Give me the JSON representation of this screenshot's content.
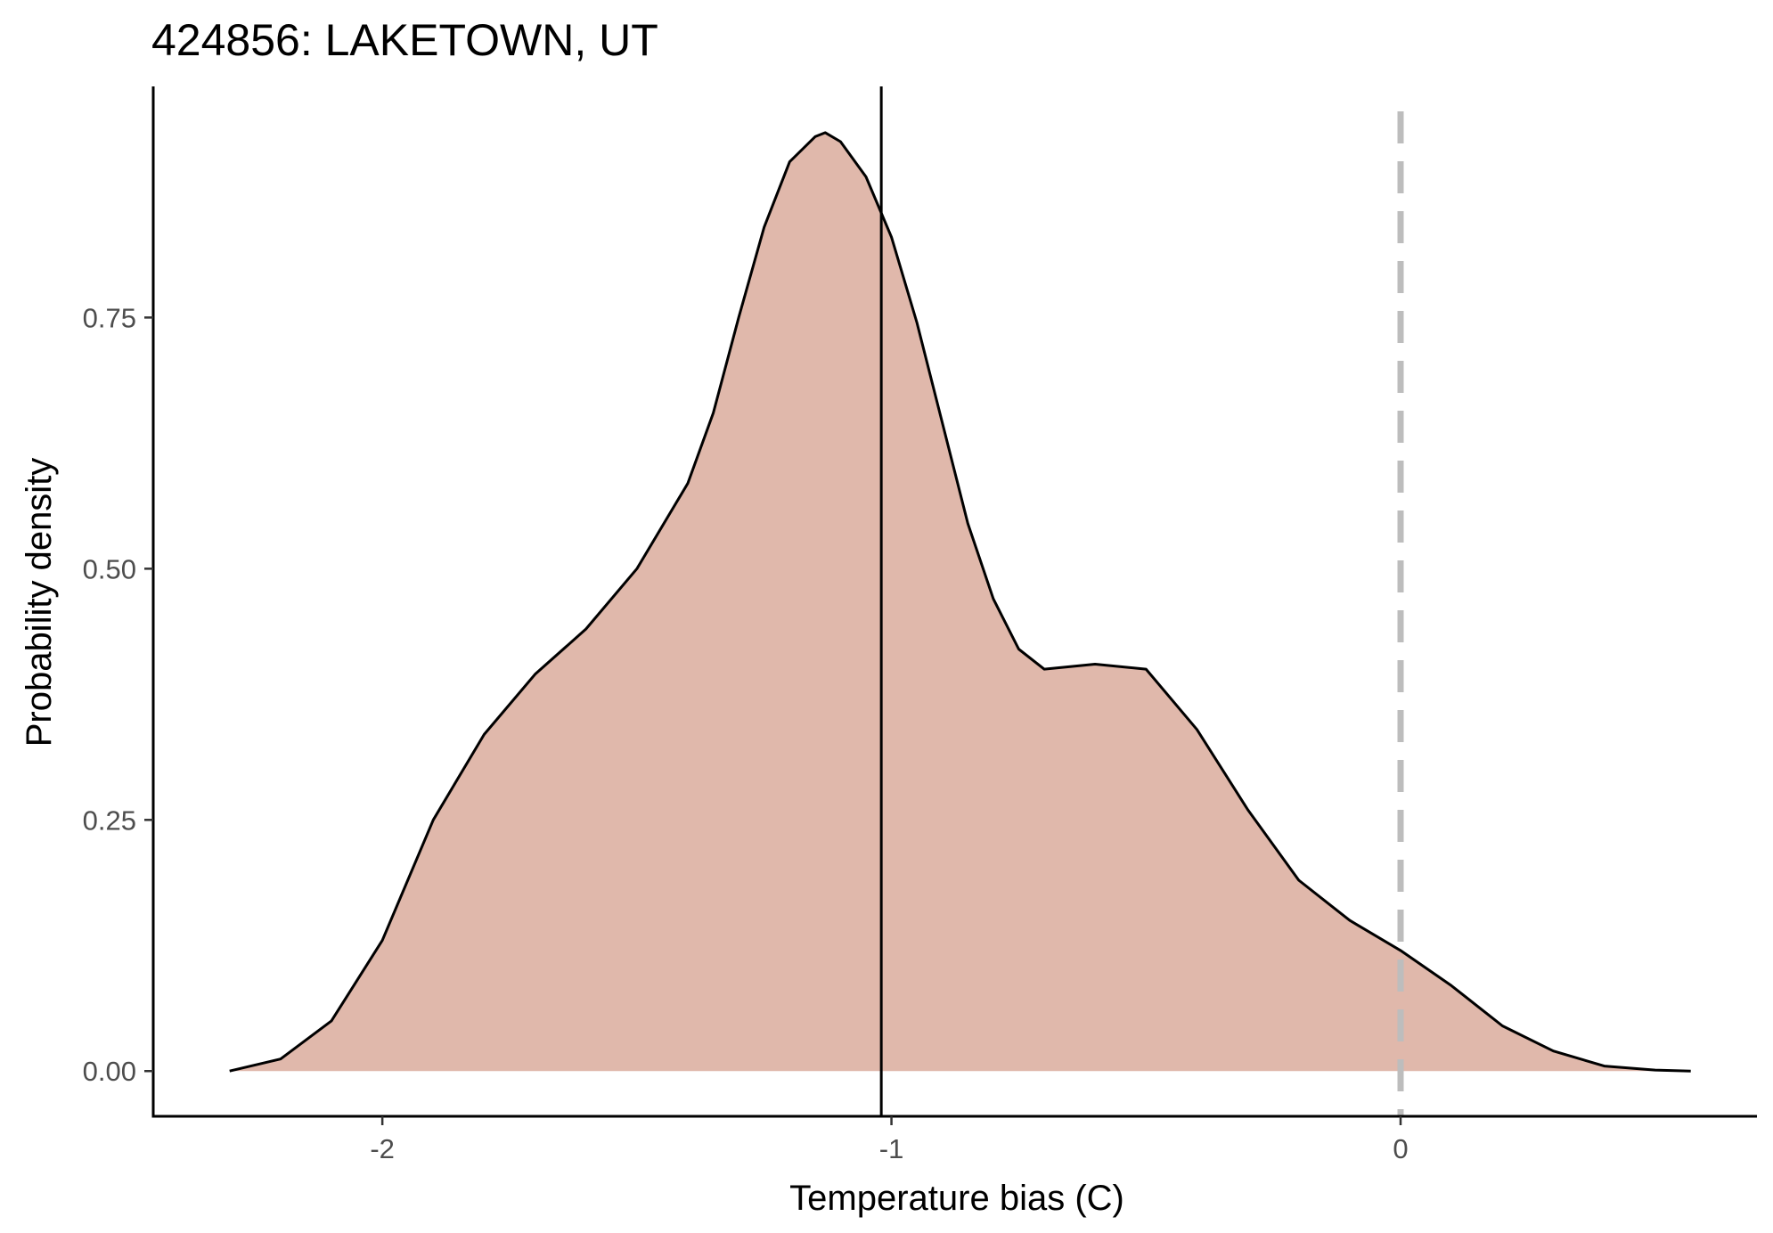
{
  "chart_data": {
    "type": "area",
    "title": "424856: LAKETOWN, UT",
    "xlabel": "Temperature bias (C)",
    "ylabel": "Probability density",
    "xlim": [
      -2.45,
      0.7
    ],
    "ylim": [
      -0.045,
      0.98
    ],
    "x_ticks": [
      {
        "value": -2,
        "label": "-2"
      },
      {
        "value": -1,
        "label": "-1"
      },
      {
        "value": 0,
        "label": "0"
      }
    ],
    "y_ticks": [
      {
        "value": 0.0,
        "label": "0.00"
      },
      {
        "value": 0.25,
        "label": "0.25"
      },
      {
        "value": 0.5,
        "label": "0.50"
      },
      {
        "value": 0.75,
        "label": "0.75"
      }
    ],
    "series": [
      {
        "x": [
          -2.3,
          -2.2,
          -2.1,
          -2.0,
          -1.9,
          -1.8,
          -1.7,
          -1.6,
          -1.5,
          -1.4,
          -1.35,
          -1.3,
          -1.25,
          -1.2,
          -1.15,
          -1.13,
          -1.1,
          -1.05,
          -1.0,
          -0.95,
          -0.9,
          -0.85,
          -0.8,
          -0.75,
          -0.7,
          -0.6,
          -0.5,
          -0.4,
          -0.3,
          -0.2,
          -0.1,
          0.0,
          0.1,
          0.2,
          0.3,
          0.4,
          0.5,
          0.57
        ],
        "y": [
          0.0,
          0.012,
          0.05,
          0.13,
          0.25,
          0.335,
          0.395,
          0.44,
          0.5,
          0.585,
          0.655,
          0.75,
          0.84,
          0.905,
          0.93,
          0.934,
          0.925,
          0.89,
          0.83,
          0.745,
          0.645,
          0.545,
          0.47,
          0.42,
          0.4,
          0.405,
          0.4,
          0.34,
          0.26,
          0.19,
          0.15,
          0.12,
          0.085,
          0.045,
          0.02,
          0.005,
          0.001,
          0.0
        ]
      }
    ],
    "vlines": [
      {
        "x": -1.02,
        "style": "solid",
        "color": "#000000"
      },
      {
        "x": 0.0,
        "style": "dashed",
        "color": "#bdbdbd"
      }
    ],
    "fill_color": "#e0b8ab",
    "outline_color": "#000000",
    "grid": false,
    "legend": "none"
  }
}
